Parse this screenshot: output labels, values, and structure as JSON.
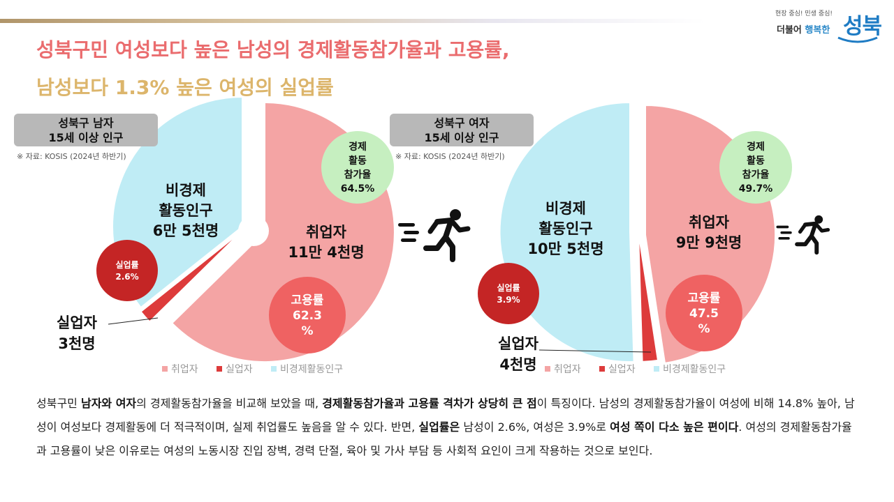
{
  "logo": {
    "tagline": "현장 중심! 민생 중심!",
    "subtitle_a": "더불어 ",
    "subtitle_b": "행복한",
    "brand": "성북"
  },
  "title_line1": "성북구민 여성보다 높은 남성의 경제활동참가율과 고용률,",
  "title_line2": "남성보다 1.3% 높은 여성의 실업률",
  "legend": [
    "취업자",
    "실업자",
    "비경제활동인구"
  ],
  "colors": {
    "employed": "#f4a4a4",
    "unemployed": "#dd3b3b",
    "inactive": "#bfecf5",
    "participation_badge": "#c6efc0",
    "employment_badge": "#ef6262",
    "unemployment_badge": "#c42525"
  },
  "chart_data": [
    {
      "type": "pie",
      "label_line1": "성북구 남자",
      "label_line2": "15세 이상 인구",
      "source": "※ 자료: KOSIS (2024년 하반기)",
      "unit": "명",
      "slices": [
        {
          "name": "취업자",
          "value": 114000,
          "label1": "취업자",
          "label2": "11만 4천명"
        },
        {
          "name": "실업자",
          "value": 3000,
          "label1": "실업자",
          "label2": "3천명"
        },
        {
          "name": "비경제활동인구",
          "value": 65000,
          "label1": "비경제",
          "label2": "활동인구",
          "label3": "6만 5천명"
        }
      ],
      "participation_rate": {
        "lines": [
          "경제",
          "활동",
          "참가율",
          "64.5%"
        ],
        "value": 64.5
      },
      "employment_rate": {
        "lines": [
          "고용률",
          "62.3",
          "%"
        ],
        "value": 62.3
      },
      "unemployment_rate": {
        "lines": [
          "실업률",
          "2.6%"
        ],
        "value": 2.6
      }
    },
    {
      "type": "pie",
      "label_line1": "성북구 여자",
      "label_line2": "15세 이상 인구",
      "source": "※ 자료: KOSIS (2024년 하반기)",
      "unit": "명",
      "slices": [
        {
          "name": "취업자",
          "value": 99000,
          "label1": "취업자",
          "label2": "9만 9천명"
        },
        {
          "name": "실업자",
          "value": 4000,
          "label1": "실업자",
          "label2": "4천명"
        },
        {
          "name": "비경제활동인구",
          "value": 105000,
          "label1": "비경제",
          "label2": "활동인구",
          "label3": "10만 5천명"
        }
      ],
      "participation_rate": {
        "lines": [
          "경제",
          "활동",
          "참가율",
          "49.7%"
        ],
        "value": 49.7
      },
      "employment_rate": {
        "lines": [
          "고용률",
          "47.5",
          "%"
        ],
        "value": 47.5
      },
      "unemployment_rate": {
        "lines": [
          "실업률",
          "3.9%"
        ],
        "value": 3.9
      }
    }
  ],
  "description": {
    "p1": "성북구민 ",
    "b1": "남자와 여자",
    "p2": "의 경제활동참가율을 비교해 보았을 때, ",
    "b2": "경제활동참가율과 고용률 격차가 상당히 큰 점",
    "p3": "이 특징이다. 남성의 경제활동참가율이 여성에 비해 14.8% 높아, 남성이 여성보다 경제활동에 더 적극적이며, 실제 취업률도 높음을 알 수 있다. 반면, ",
    "b3": "실업률은",
    "p4": " 남성이 2.6%, 여성은 3.9%로 ",
    "b4": "여성 쪽이 다소 높은 편이다",
    "p5": ". 여성의 경제활동참가율과 고용률이 낮은 이유로는 여성의 노동시장 진입 장벽, 경력 단절, 육아 및 가사 부담 등 사회적 요인이 크게 작용하는 것으로 보인다."
  }
}
